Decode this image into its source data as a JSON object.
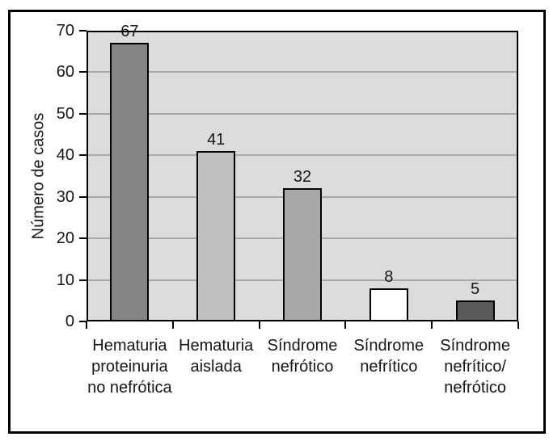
{
  "figure": {
    "background": "#ffffff",
    "border_color": "#000000"
  },
  "chart_data": {
    "type": "bar",
    "title": "",
    "xlabel": "",
    "ylabel": "Número de casos",
    "ylim": [
      0,
      70
    ],
    "yticks": [
      0,
      10,
      20,
      30,
      40,
      50,
      60,
      70
    ],
    "grid": true,
    "legend": false,
    "plot_background": "#dcdcde",
    "grid_color": "#a9a9ac",
    "axis_color": "#000000",
    "bar_border_color": "#000000",
    "categories": [
      "Hematuria proteinuria no nefrótica",
      "Hematuria aislada",
      "Síndrome nefrótico",
      "Síndrome nefrítico",
      "Síndrome nefrítico/ nefrótico"
    ],
    "category_lines": [
      [
        "Hematuria",
        "proteinuria",
        "no nefrótica"
      ],
      [
        "Hematuria",
        "aislada"
      ],
      [
        "Síndrome",
        "nefrótico"
      ],
      [
        "Síndrome",
        "nefrítico"
      ],
      [
        "Síndrome",
        "nefrítico/",
        "nefrótico"
      ]
    ],
    "values": [
      67,
      41,
      32,
      8,
      5
    ],
    "value_labels": [
      "67",
      "41",
      "32",
      "8",
      "5"
    ],
    "bar_colors": [
      "#848484",
      "#bfbfbf",
      "#a8a8a8",
      "#ffffff",
      "#5a5a58"
    ]
  }
}
